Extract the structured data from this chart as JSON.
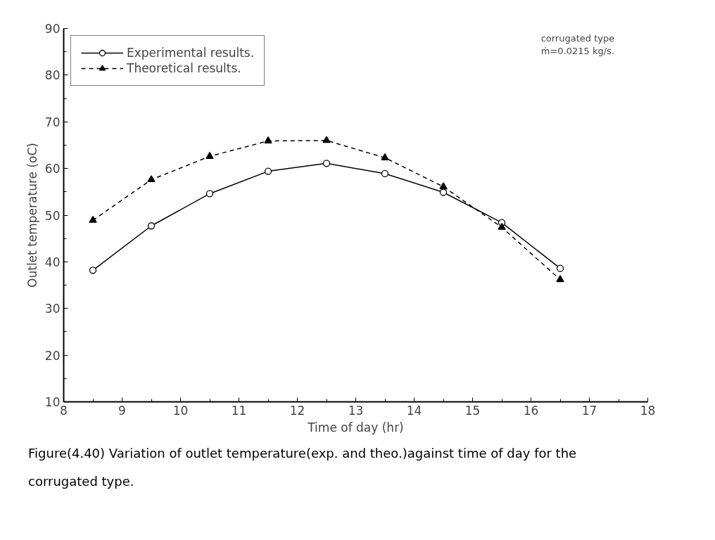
{
  "chart_data": {
    "type": "line",
    "title": "Figure(4.40) Variation of outlet temperature(exp. and theo.)against time of day for the corrugated type.",
    "xlabel": "Time of day (hr)",
    "ylabel": "Outlet temperature (oC)",
    "annotations": [
      "corrugated type",
      "ṁ=0.0215 kg/s."
    ],
    "x": [
      8.5,
      9.5,
      10.5,
      11.5,
      12.5,
      13.5,
      14.5,
      15.5,
      16.5
    ],
    "series": [
      {
        "name": "Experimental results.",
        "color": "#000000",
        "marker": "circle",
        "line_style": "solid",
        "values": [
          38.2,
          47.7,
          54.6,
          59.4,
          61.1,
          58.9,
          54.9,
          48.4,
          38.6
        ]
      },
      {
        "name": "Theoretical results.",
        "color": "#000000",
        "marker": "triangle",
        "line_style": "dashed",
        "values": [
          48.9,
          57.6,
          62.6,
          65.9,
          66.0,
          62.3,
          56.1,
          47.4,
          36.2
        ]
      }
    ],
    "xlim": [
      8,
      18
    ],
    "xticks": [
      8,
      9,
      10,
      11,
      12,
      13,
      14,
      15,
      16,
      17,
      18
    ],
    "ylim": [
      10,
      90
    ],
    "yticks": [
      10,
      20,
      30,
      40,
      50,
      60,
      70,
      80,
      90
    ],
    "grid": false,
    "legend": "top left"
  }
}
